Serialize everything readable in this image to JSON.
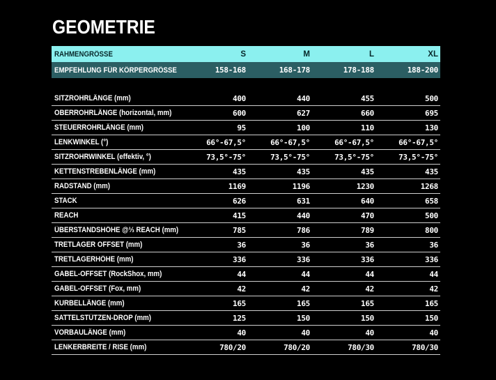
{
  "colors": {
    "cyan": "#8BF0EF",
    "teal": "#2B5E63",
    "line": "#cfcfcf",
    "background": "#000000"
  },
  "page": {
    "title": "GEOMETRIE"
  },
  "table": {
    "header": {
      "label": "RAHMENGRÖSSE",
      "sizes": [
        "S",
        "M",
        "L",
        "XL"
      ]
    },
    "recommendation": {
      "label": "EMPFEHLUNG FÜR KÖRPERGRÖSSE",
      "values": [
        "158-168",
        "168-178",
        "178-188",
        "188-200"
      ]
    },
    "rows": [
      {
        "label": "SITZROHRLÄNGE (mm)",
        "values": [
          "400",
          "440",
          "455",
          "500"
        ]
      },
      {
        "label": "OBERROHRLÄNGE (horizontal, mm)",
        "values": [
          "600",
          "627",
          "660",
          "695"
        ]
      },
      {
        "label": "STEUERROHRLÄNGE (mm)",
        "values": [
          "95",
          "100",
          "110",
          "130"
        ]
      },
      {
        "label": "LENKWINKEL (°)",
        "values": [
          "66°-67,5°",
          "66°-67,5°",
          "66°-67,5°",
          "66°-67,5°"
        ]
      },
      {
        "label": "SITZROHRWINKEL (effektiv, °)",
        "values": [
          "73,5°-75°",
          "73,5°-75°",
          "73,5°-75°",
          "73,5°-75°"
        ]
      },
      {
        "label": "KETTENSTREBENLÄNGE (mm)",
        "values": [
          "435",
          "435",
          "435",
          "435"
        ]
      },
      {
        "label": "RADSTAND (mm)",
        "values": [
          "1169",
          "1196",
          "1230",
          "1268"
        ]
      },
      {
        "label": "STACK",
        "values": [
          "626",
          "631",
          "640",
          "658"
        ]
      },
      {
        "label": "REACH",
        "values": [
          "415",
          "440",
          "470",
          "500"
        ]
      },
      {
        "label": "ÜBERSTANDSHÖHE @⅓ REACH (mm)",
        "values": [
          "785",
          "786",
          "789",
          "800"
        ]
      },
      {
        "label": "TRETLAGER OFFSET (mm)",
        "values": [
          "36",
          "36",
          "36",
          "36"
        ]
      },
      {
        "label": "TRETLAGERHÖHE (mm)",
        "values": [
          "336",
          "336",
          "336",
          "336"
        ]
      },
      {
        "label": "GABEL-OFFSET (RockShox, mm)",
        "values": [
          "44",
          "44",
          "44",
          "44"
        ]
      },
      {
        "label": "GABEL-OFFSET (Fox, mm)",
        "values": [
          "42",
          "42",
          "42",
          "42"
        ]
      },
      {
        "label": "KURBELLÄNGE (mm)",
        "values": [
          "165",
          "165",
          "165",
          "165"
        ]
      },
      {
        "label": "SATTELSTÜTZEN-DROP (mm)",
        "values": [
          "125",
          "150",
          "150",
          "150"
        ]
      },
      {
        "label": "VORBAULÄNGE (mm)",
        "values": [
          "40",
          "40",
          "40",
          "40"
        ]
      },
      {
        "label": "LENKERBREITE / RISE (mm)",
        "values": [
          "780/20",
          "780/20",
          "780/30",
          "780/30"
        ]
      }
    ]
  }
}
